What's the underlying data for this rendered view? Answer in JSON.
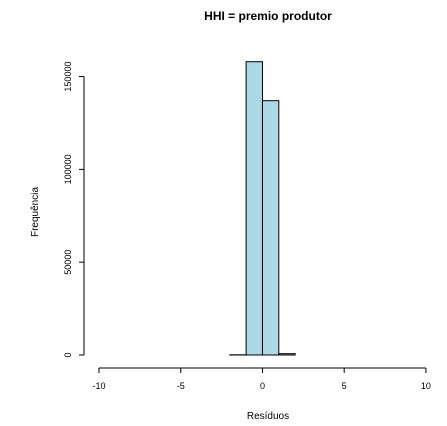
{
  "chart_data": {
    "type": "bar",
    "title": "HHI = premio produtor",
    "xlabel": "Resíduos",
    "ylabel": "Frequência",
    "bar_color": "#add8e6",
    "edge_color": "#000000",
    "xlim": [
      -10,
      10.8
    ],
    "ylim": [
      0,
      160000
    ],
    "xticks": [
      -10,
      -5,
      0,
      5,
      10
    ],
    "xtick_labels": [
      "-10",
      "-5",
      "0",
      "5",
      "10"
    ],
    "yticks": [
      0,
      50000,
      100000,
      150000
    ],
    "ytick_labels": [
      "0",
      "50000",
      "100000",
      "150000"
    ],
    "bins": [
      {
        "x0": -10,
        "x1": -9,
        "count": 0
      },
      {
        "x0": -9,
        "x1": -8,
        "count": 0
      },
      {
        "x0": -8,
        "x1": -7,
        "count": 0
      },
      {
        "x0": -7,
        "x1": -6,
        "count": 0
      },
      {
        "x0": -6,
        "x1": -5,
        "count": 0
      },
      {
        "x0": -5,
        "x1": -4,
        "count": 0
      },
      {
        "x0": -4,
        "x1": -3,
        "count": 0
      },
      {
        "x0": -3,
        "x1": -2,
        "count": 0
      },
      {
        "x0": -2,
        "x1": -1,
        "count": 100
      },
      {
        "x0": -1,
        "x1": 0,
        "count": 158000
      },
      {
        "x0": 0,
        "x1": 1,
        "count": 137000
      },
      {
        "x0": 1,
        "x1": 2,
        "count": 700
      },
      {
        "x0": 2,
        "x1": 3,
        "count": 0
      },
      {
        "x0": 3,
        "x1": 4,
        "count": 0
      },
      {
        "x0": 4,
        "x1": 5,
        "count": 0
      },
      {
        "x0": 5,
        "x1": 6,
        "count": 0
      },
      {
        "x0": 6,
        "x1": 7,
        "count": 0
      },
      {
        "x0": 7,
        "x1": 8,
        "count": 0
      },
      {
        "x0": 8,
        "x1": 9,
        "count": 0
      },
      {
        "x0": 9,
        "x1": 10,
        "count": 0
      },
      {
        "x0": 10,
        "x1": 10.8,
        "count": 0
      }
    ]
  }
}
